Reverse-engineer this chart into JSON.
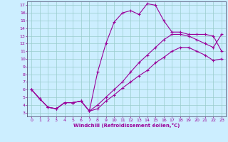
{
  "xlabel": "Windchill (Refroidissement éolien,°C)",
  "bg_color": "#cceeff",
  "line_color": "#990099",
  "grid_color": "#99cccc",
  "xlim": [
    -0.5,
    23.5
  ],
  "ylim": [
    2.5,
    17.5
  ],
  "xticks": [
    0,
    1,
    2,
    3,
    4,
    5,
    6,
    7,
    8,
    9,
    10,
    11,
    12,
    13,
    14,
    15,
    16,
    17,
    18,
    19,
    20,
    21,
    22,
    23
  ],
  "yticks": [
    3,
    4,
    5,
    6,
    7,
    8,
    9,
    10,
    11,
    12,
    13,
    14,
    15,
    16,
    17
  ],
  "line1_x": [
    0,
    1,
    2,
    3,
    4,
    5,
    6,
    7,
    8,
    9,
    10,
    11,
    12,
    13,
    14,
    15,
    16,
    17,
    18,
    19,
    20,
    21,
    22,
    23
  ],
  "line1_y": [
    6.0,
    4.8,
    3.7,
    3.5,
    4.3,
    4.3,
    4.5,
    3.2,
    8.3,
    12.0,
    14.8,
    16.0,
    16.3,
    15.8,
    17.2,
    17.0,
    15.0,
    13.5,
    13.5,
    13.2,
    13.2,
    13.2,
    13.0,
    11.0
  ],
  "line2_x": [
    0,
    1,
    2,
    3,
    4,
    5,
    6,
    7,
    8,
    9,
    10,
    11,
    12,
    13,
    14,
    15,
    16,
    17,
    18,
    19,
    20,
    21,
    22,
    23
  ],
  "line2_y": [
    6.0,
    4.8,
    3.7,
    3.5,
    4.3,
    4.3,
    4.5,
    3.2,
    4.0,
    5.0,
    6.0,
    7.0,
    8.3,
    9.5,
    10.5,
    11.5,
    12.5,
    13.2,
    13.2,
    13.0,
    12.5,
    12.0,
    11.5,
    13.2
  ],
  "line3_x": [
    0,
    1,
    2,
    3,
    4,
    5,
    6,
    7,
    8,
    9,
    10,
    11,
    12,
    13,
    14,
    15,
    16,
    17,
    18,
    19,
    20,
    21,
    22,
    23
  ],
  "line3_y": [
    6.0,
    4.8,
    3.7,
    3.5,
    4.3,
    4.3,
    4.5,
    3.2,
    3.5,
    4.5,
    5.3,
    6.2,
    7.0,
    7.8,
    8.5,
    9.5,
    10.2,
    11.0,
    11.5,
    11.5,
    11.0,
    10.5,
    9.8,
    10.0
  ]
}
